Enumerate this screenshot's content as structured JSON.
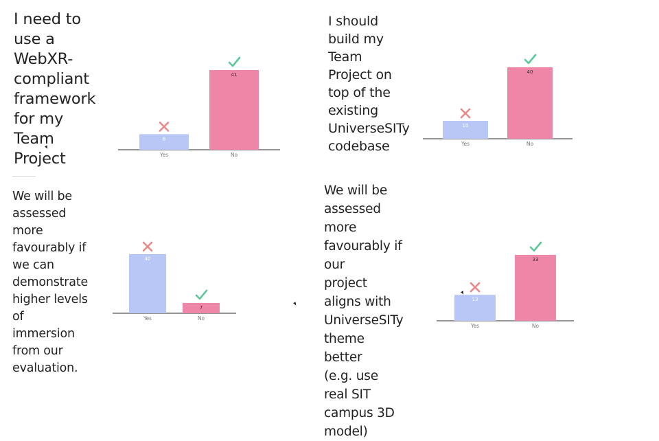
{
  "colors": {
    "yes": "#b9c7f6",
    "no": "#ee86a8",
    "check": "#5cc79b",
    "cross": "#e88a8a",
    "axis": "#555555"
  },
  "chart_data": [
    {
      "type": "bar",
      "title": "I need to use a WebXR-compliant\nframework for my Team Project",
      "categories": [
        "Yes",
        "No"
      ],
      "values": [
        8,
        41
      ],
      "ylim": [
        0,
        41
      ],
      "marks": [
        "cross",
        "check"
      ],
      "xlabel": "",
      "ylabel": ""
    },
    {
      "type": "bar",
      "title": "I should build my Team Project on top of the\nexisting UniverseSITy codebase",
      "categories": [
        "Yes",
        "No"
      ],
      "values": [
        10,
        40
      ],
      "ylim": [
        0,
        40
      ],
      "marks": [
        "cross",
        "check"
      ],
      "xlabel": "",
      "ylabel": ""
    },
    {
      "type": "bar",
      "title": "We will be assessed more favourably if we can\ndemonstrate higher levels of immersion from our\nevaluation.",
      "categories": [
        "Yes",
        "No"
      ],
      "values": [
        40,
        7
      ],
      "ylim": [
        0,
        40
      ],
      "marks": [
        "cross",
        "check"
      ],
      "xlabel": "",
      "ylabel": ""
    },
    {
      "type": "bar",
      "title": "We will be assessed more favourably if our\nproject aligns with UniverseSITy theme better\n(e.g. use real SIT campus 3D model)",
      "categories": [
        "Yes",
        "No"
      ],
      "values": [
        13,
        33
      ],
      "ylim": [
        0,
        33
      ],
      "marks": [
        "cross",
        "check"
      ],
      "xlabel": "",
      "ylabel": ""
    }
  ]
}
